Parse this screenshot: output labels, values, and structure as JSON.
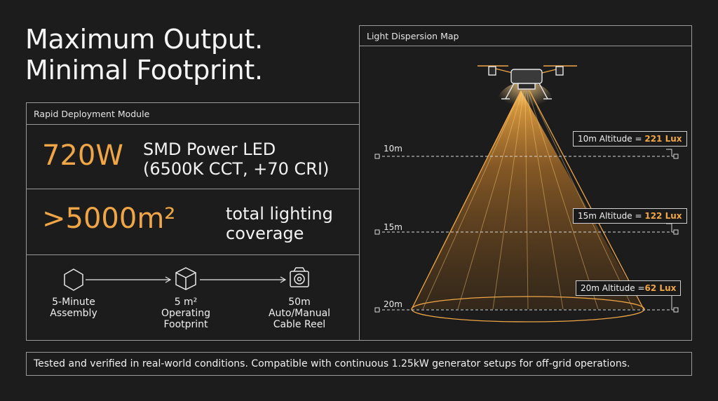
{
  "headline": {
    "line1": "Maximum Output.",
    "line2": "Minimal Footprint."
  },
  "module": {
    "title": "Rapid Deployment Module",
    "power": {
      "value": "720W",
      "desc_line1": "SMD Power LED",
      "desc_line2": "(6500K CCT, +70 CRI)"
    },
    "coverage": {
      "value": ">5000m²",
      "desc_line1": "total lighting",
      "desc_line2": "coverage"
    },
    "steps": [
      {
        "icon": "hexagon-icon",
        "line1": "5-Minute",
        "line2": "Assembly",
        "line3": ""
      },
      {
        "icon": "cube-icon",
        "line1": "5 m²",
        "line2": "Operating",
        "line3": "Footprint"
      },
      {
        "icon": "cable-reel-icon",
        "line1": "50m",
        "line2": "Auto/Manual",
        "line3": "Cable Reel"
      }
    ]
  },
  "dispersion": {
    "title": "Light Dispersion Map",
    "levels": [
      {
        "altitude_label": "10m",
        "callout_text": "10m Altitude = ",
        "lux": "221 Lux"
      },
      {
        "altitude_label": "15m",
        "callout_text": "15m Altitude = ",
        "lux": "122 Lux"
      },
      {
        "altitude_label": "20m",
        "callout_text": "20m Altitude =",
        "lux": "62 Lux"
      }
    ]
  },
  "footer": {
    "text": "Tested and verified in real-world conditions. Compatible with continuous 1.25kW generator setups for off-grid operations."
  },
  "colors": {
    "accent": "#f0a646",
    "background": "#1c1c1c",
    "border": "#9a9a9a"
  }
}
